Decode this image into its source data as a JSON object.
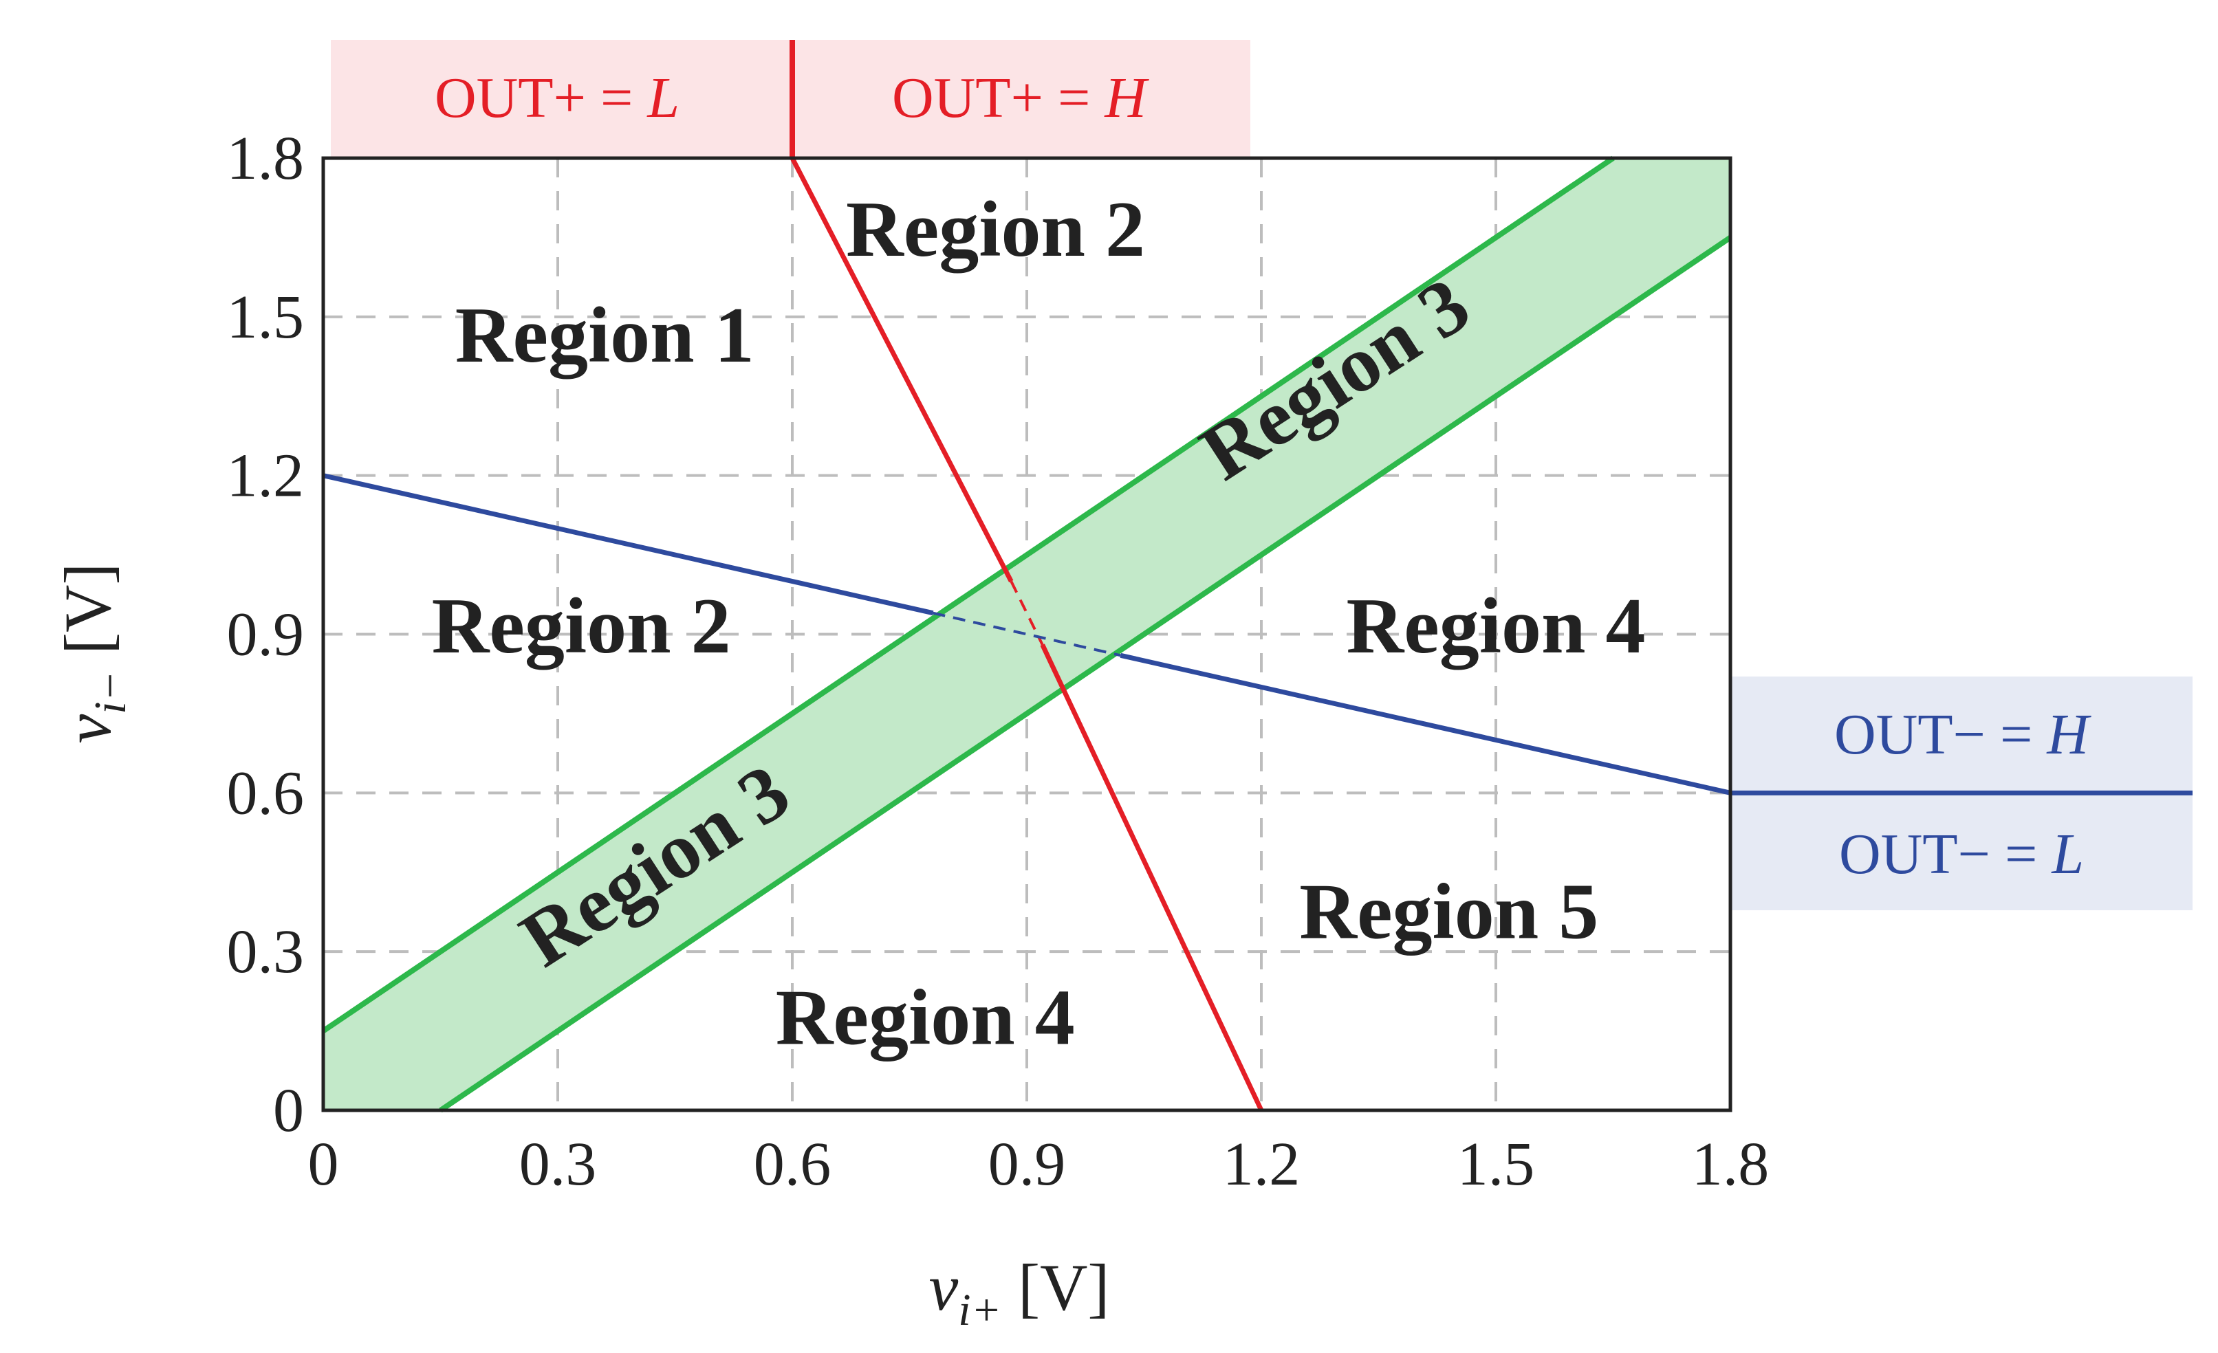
{
  "chart_data": {
    "type": "line",
    "xlabel": {
      "var": "v",
      "sub": "i+",
      "unit": "[V]"
    },
    "ylabel": {
      "var": "v",
      "sub": "i−",
      "unit": "[V]"
    },
    "xlim": [
      0,
      1.8
    ],
    "ylim": [
      0,
      1.8
    ],
    "xticks": [
      0,
      0.3,
      0.6,
      0.9,
      1.2,
      1.5,
      1.8
    ],
    "yticks": [
      0,
      0.3,
      0.6,
      0.9,
      1.2,
      1.5,
      1.8
    ],
    "xtick_labels": [
      "0",
      "0.3",
      "0.6",
      "0.9",
      "1.2",
      "1.5",
      "1.8"
    ],
    "ytick_labels": [
      "0",
      "0.3",
      "0.6",
      "0.9",
      "1.2",
      "1.5",
      "1.8"
    ],
    "grid": true,
    "lines": [
      {
        "color": "#e41e26",
        "points": [
          [
            0.6,
            1.8
          ],
          [
            0.88,
            1.0
          ],
          [
            0.92,
            0.88
          ],
          [
            1.2,
            0
          ]
        ],
        "dashed_segment": [
          [
            0.88,
            1.0
          ],
          [
            0.92,
            0.88
          ]
        ]
      },
      {
        "color": "#2e4a9e",
        "points": [
          [
            0,
            1.2
          ],
          [
            0.78,
            0.94
          ],
          [
            1.02,
            0.86
          ],
          [
            1.8,
            0.6
          ]
        ],
        "dashed_segment": [
          [
            0.78,
            0.94
          ],
          [
            1.02,
            0.86
          ]
        ]
      }
    ],
    "band": {
      "color": "#2db84b",
      "fill": "#c3e9c9",
      "lower": [
        [
          0.15,
          0
        ],
        [
          1.8,
          1.65
        ]
      ],
      "upper": [
        [
          0,
          0.15
        ],
        [
          1.65,
          1.8
        ]
      ]
    },
    "regions": [
      {
        "label": "Region 1",
        "x": 0.36,
        "y": 1.45,
        "angle": 0
      },
      {
        "label": "Region 2",
        "x": 0.86,
        "y": 1.65,
        "angle": 0
      },
      {
        "label": "Region 2",
        "x": 0.33,
        "y": 0.9,
        "angle": 0
      },
      {
        "label": "Region 3",
        "x": 1.3,
        "y": 1.37,
        "angle": -33
      },
      {
        "label": "Region 3",
        "x": 0.43,
        "y": 0.45,
        "angle": -33
      },
      {
        "label": "Region 4",
        "x": 1.5,
        "y": 0.9,
        "angle": 0
      },
      {
        "label": "Region 5",
        "x": 1.44,
        "y": 0.36,
        "angle": 0
      },
      {
        "label": "Region 4",
        "x": 0.77,
        "y": 0.16,
        "angle": 0
      }
    ],
    "annotations": {
      "out_plus_low": {
        "prefix": "OUT+ = ",
        "state": "L"
      },
      "out_plus_high": {
        "prefix": "OUT+ = ",
        "state": "H"
      },
      "out_minus_high": {
        "prefix": "OUT− = ",
        "state": "H"
      },
      "out_minus_low": {
        "prefix": "OUT− = ",
        "state": "L"
      }
    }
  }
}
